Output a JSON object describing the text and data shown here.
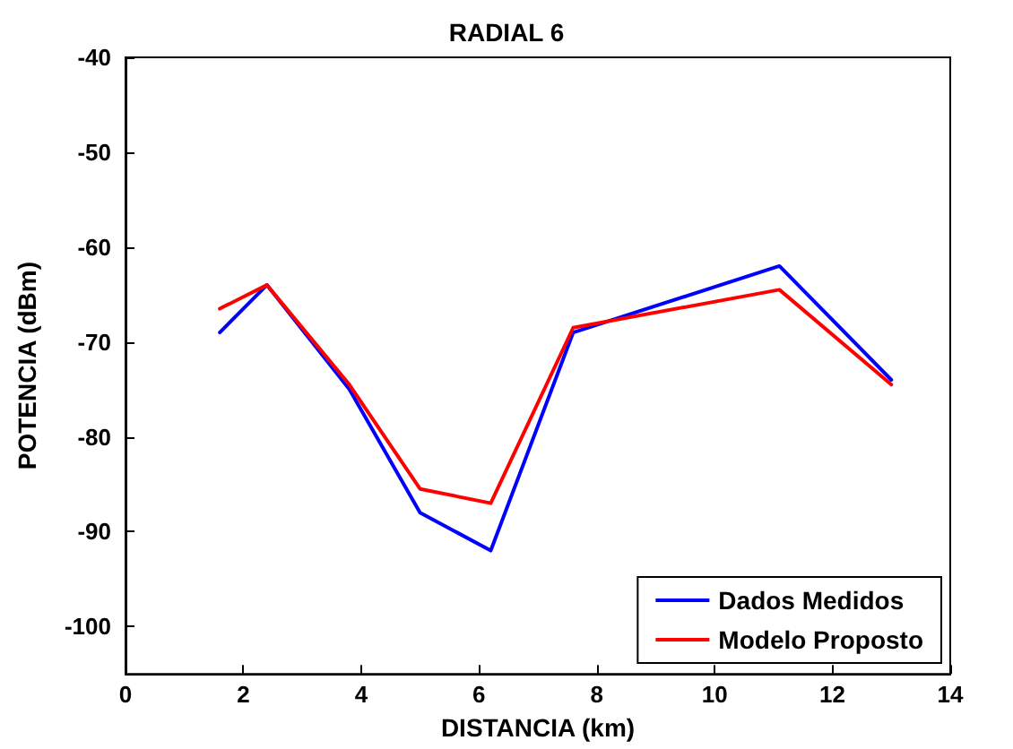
{
  "chart_data": {
    "type": "line",
    "title": "RADIAL 6",
    "xlabel": "DISTANCIA (km)",
    "ylabel": "POTENCIA (dBm)",
    "x": [
      1.6,
      2.4,
      3.8,
      5,
      6.2,
      7.6,
      11.1,
      13
    ],
    "series": [
      {
        "name": "Dados Medidos",
        "color": "#0000ff",
        "values": [
          -69,
          -64,
          -75,
          -88,
          -92,
          -69,
          -62,
          -74
        ]
      },
      {
        "name": "Modelo Proposto",
        "color": "#ff0000",
        "values": [
          -66.5,
          -64,
          -74.5,
          -85.5,
          -87,
          -68.5,
          -64.5,
          -74.5
        ]
      }
    ],
    "xlim": [
      0,
      14
    ],
    "xticks": [
      0,
      2,
      4,
      6,
      8,
      10,
      12,
      14
    ],
    "ylim": [
      -105,
      -40
    ],
    "yticks": [
      -100,
      -90,
      -80,
      -70,
      -60,
      -50,
      -40
    ],
    "grid": false,
    "legend": "bottom right",
    "marker": "none",
    "line_style": "solid"
  }
}
